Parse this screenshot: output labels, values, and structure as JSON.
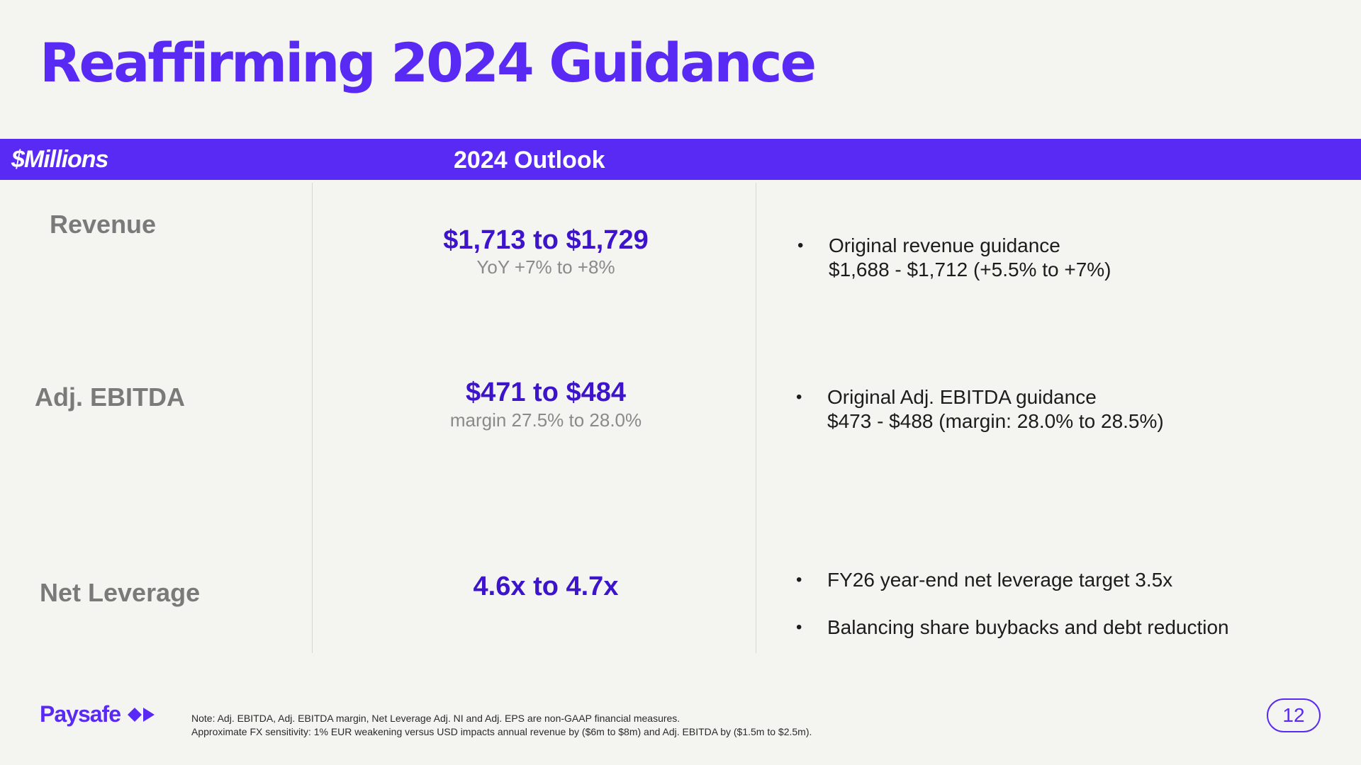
{
  "title": "Reaffirming 2024 Guidance",
  "header": {
    "units_label": "$Millions",
    "outlook_label": "2024 Outlook"
  },
  "rows": [
    {
      "label": "Revenue",
      "value": "$1,713 to $1,729",
      "sub": "YoY +7% to +8%",
      "notes": [
        {
          "line1": "Original revenue guidance",
          "line2": "$1,688 - $1,712  (+5.5% to +7%)"
        }
      ]
    },
    {
      "label": "Adj. EBITDA",
      "value": "$471 to $484",
      "sub": "margin 27.5% to 28.0%",
      "notes": [
        {
          "line1": "Original Adj. EBITDA guidance",
          "line2": "$473 - $488 (margin: 28.0% to 28.5%)"
        }
      ]
    },
    {
      "label": "Net Leverage",
      "value": "4.6x to 4.7x",
      "notes": [
        {
          "line1": "FY26 year-end net leverage target 3.5x"
        },
        {
          "line1": "Balancing share buybacks and debt reduction"
        }
      ]
    }
  ],
  "bullet_char": "•",
  "footer": {
    "logo_text": "Paysafe",
    "note_line1": "Note: Adj. EBITDA, Adj. EBITDA margin, Net Leverage Adj. NI and Adj. EPS are non-GAAP financial measures.",
    "note_line2": "Approximate FX sensitivity: 1% EUR weakening versus USD impacts annual revenue by ($6m to $8m) and Adj. EBITDA by ($1.5m to $2.5m).",
    "page_number": "12"
  },
  "colors": {
    "brand": "#5a2af5",
    "value": "#3d14cc",
    "label": "#7a7a7a",
    "background": "#f4f4f0"
  },
  "icons": {
    "logo_mark": "paysafe-arrows-icon"
  }
}
